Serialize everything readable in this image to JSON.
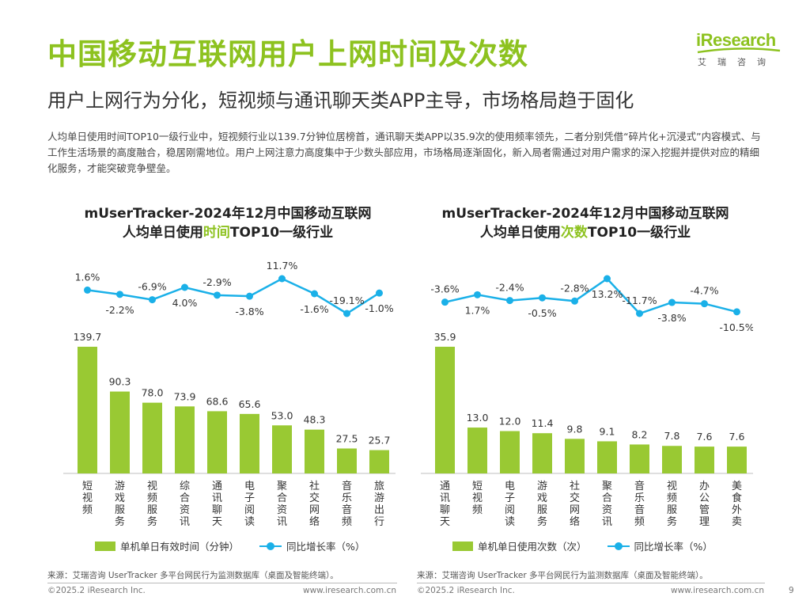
{
  "header": {
    "title": "中国移动互联网用户上网时间及次数",
    "subtitle": "用户上网行为分化，短视频与通讯聊天类APP主导，市场格局趋于固化",
    "intro": "人均单日使用时间TOP10一级行业中，短视频行业以139.7分钟位居榜首，通讯聊天类APP以35.9次的使用频率领先，二者分别凭借“碎片化+沉浸式”内容模式、与工作生活场景的高度融合，稳居刚需地位。用户上网注意力高度集中于少数头部应用，市场格局逐渐固化，新入局者需通过对用户需求的深入挖掘并提供对应的精细化服务，才能突破竞争壁垒。"
  },
  "logo": {
    "word": "iResearch",
    "sub": "艾瑞咨询",
    "color": "#8dc21f"
  },
  "colors": {
    "bar": "#99c933",
    "line": "#1ab0e8",
    "accent": "#8dc21f"
  },
  "chart_data": [
    {
      "type": "bar",
      "title_line1": "mUserTracker-2024年12月中国移动互联网",
      "title_line2_pre": "人均单日使用",
      "title_line2_hl": "时间",
      "title_line2_post": "TOP10一级行业",
      "categories": [
        "短视频",
        "游戏服务",
        "视频服务",
        "综合资讯",
        "通讯聊天",
        "电子阅读",
        "聚合资讯",
        "社交网络",
        "音乐音频",
        "旅游出行"
      ],
      "series": [
        {
          "name": "单机单日有效时间（分钟）",
          "kind": "bar",
          "values": [
            139.7,
            90.3,
            78.0,
            73.9,
            68.6,
            65.6,
            53.0,
            48.3,
            27.5,
            25.7
          ]
        },
        {
          "name": "同比增长率（%）",
          "kind": "line",
          "values": [
            1.6,
            -2.2,
            -6.9,
            4.0,
            -2.9,
            -3.8,
            11.7,
            -1.6,
            -19.1,
            -1.0
          ]
        }
      ],
      "source": "来源：艾瑞咨询 UserTracker 多平台网民行为监测数据库（桌面及智能终端）。"
    },
    {
      "type": "bar",
      "title_line1": "mUserTracker-2024年12月中国移动互联网",
      "title_line2_pre": "人均单日使用",
      "title_line2_hl": "次数",
      "title_line2_post": "TOP10一级行业",
      "categories": [
        "通讯聊天",
        "短视频",
        "电子阅读",
        "游戏服务",
        "社交网络",
        "聚合资讯",
        "音乐音频",
        "视频服务",
        "办公管理",
        "美食外卖"
      ],
      "series": [
        {
          "name": "单机单日使用次数（次）",
          "kind": "bar",
          "values": [
            35.9,
            13.0,
            12.0,
            11.4,
            9.8,
            9.1,
            8.2,
            7.8,
            7.6,
            7.6
          ]
        },
        {
          "name": "同比增长率（%）",
          "kind": "line",
          "values": [
            -3.6,
            1.7,
            -2.4,
            -0.5,
            -2.8,
            13.2,
            -11.7,
            -3.8,
            -4.7,
            -10.5
          ]
        }
      ],
      "source": "来源：艾瑞咨询 UserTracker 多平台网民行为监测数据库（桌面及智能终端）。"
    }
  ],
  "footer": {
    "copyright": "©2025.2 iResearch Inc.",
    "url": "www.iresearch.com.cn",
    "page": "9"
  }
}
